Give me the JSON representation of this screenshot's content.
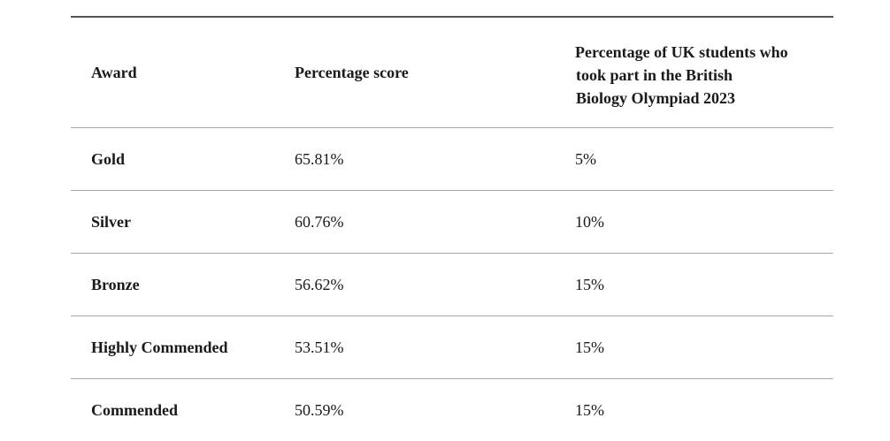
{
  "table": {
    "headers": {
      "award": "Award",
      "percentage_score": "Percentage score",
      "participants_line1": "Percentage of UK students who",
      "participants_line2": "took part in the British",
      "participants_line3": "Biology Olympiad 2023"
    },
    "rows": [
      {
        "award": "Gold",
        "score": "65.81%",
        "participants": "5%"
      },
      {
        "award": "Silver",
        "score": "60.76%",
        "participants": "10%"
      },
      {
        "award": "Bronze",
        "score": "56.62%",
        "participants": "15%"
      },
      {
        "award": "Highly Commended",
        "score": "53.51%",
        "participants": "15%"
      },
      {
        "award": "Commended",
        "score": "50.59%",
        "participants": "15%"
      }
    ]
  }
}
